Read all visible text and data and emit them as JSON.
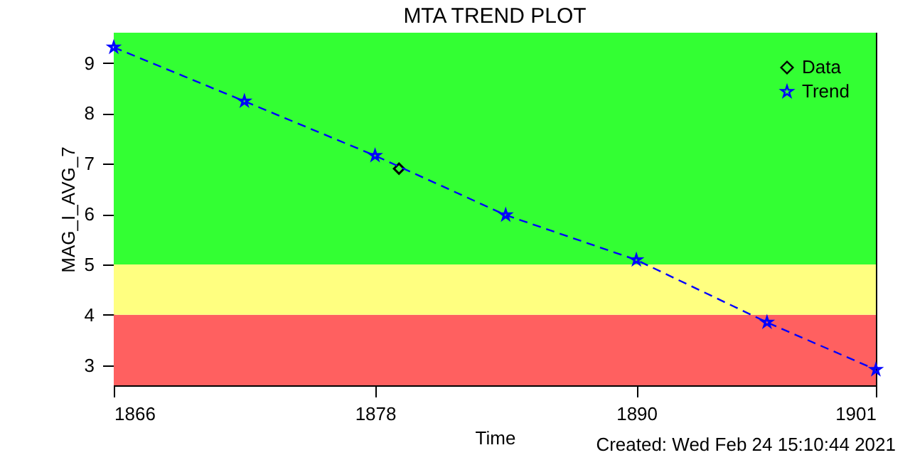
{
  "chart_data": {
    "type": "scatter",
    "title": "MTA TREND PLOT",
    "xlabel": "Time",
    "ylabel": "MAG_I_AVG_7",
    "annotations": [
      "Created: Wed Feb 24 15:10:44 2021"
    ],
    "xlim": [
      1866,
      1901
    ],
    "xticks": [
      1866,
      1878,
      1890,
      1901
    ],
    "ylim": [
      2.6,
      9.6
    ],
    "yticks": [
      3,
      4,
      5,
      6,
      7,
      8,
      9
    ],
    "grid": false,
    "legend": "top right",
    "bands": [
      {
        "axis": "y",
        "from": 2.6,
        "to": 4,
        "color": "#ff6060"
      },
      {
        "axis": "y",
        "from": 4,
        "to": 5,
        "color": "#ffff80"
      },
      {
        "axis": "y",
        "from": 5,
        "to": 9.6,
        "color": "#33ff33"
      }
    ],
    "series": [
      {
        "name": "Data",
        "type": "scatter",
        "color": "#000000",
        "marker": "diamond",
        "x": [
          1879.1
        ],
        "values": [
          6.9
        ]
      },
      {
        "name": "Trend",
        "type": "line",
        "color": "#0000ff",
        "marker": "star",
        "line_style": "dashed",
        "x": [
          1866,
          1872,
          1878,
          1884,
          1890,
          1896,
          1901
        ],
        "values": [
          9.31,
          8.24,
          7.16,
          5.98,
          5.09,
          3.85,
          2.91
        ]
      }
    ]
  }
}
